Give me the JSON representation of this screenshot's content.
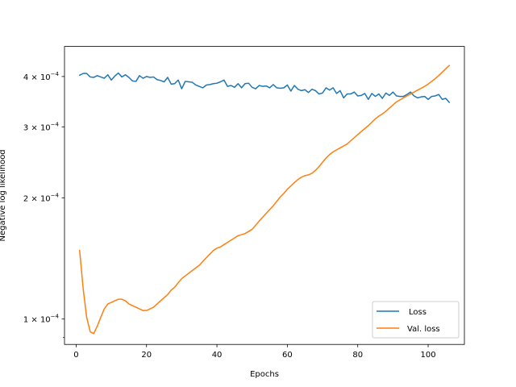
{
  "chart_data": {
    "type": "line",
    "title": "",
    "xlabel": "Epochs",
    "ylabel": "Negative log likelihood",
    "xlim": [
      -3.3,
      110.3
    ],
    "ylim": [
      8.65e-05,
      0.000475
    ],
    "yscale": "log",
    "xticks": [
      0,
      20,
      40,
      60,
      80,
      100
    ],
    "xtick_labels": [
      "0",
      "20",
      "40",
      "60",
      "80",
      "100"
    ],
    "yticks": [
      0.0001,
      0.0002,
      0.0003,
      0.0004
    ],
    "ytick_labels": [
      {
        "base": "1",
        "exp": "−4"
      },
      {
        "base": "2",
        "exp": "−4"
      },
      {
        "base": "3",
        "exp": "−4"
      },
      {
        "base": "4",
        "exp": "−4"
      }
    ],
    "ytick_prefix": "× 10",
    "grid": false,
    "legend": {
      "position": "bottom-right",
      "entries": [
        "Loss",
        "Val. loss"
      ]
    },
    "colors": {
      "Loss": "#1f77b4",
      "Val. loss": "#ff7f0e"
    },
    "series": [
      {
        "name": "Loss",
        "x": [
          1,
          2,
          3,
          4,
          5,
          6,
          7,
          8,
          9,
          10,
          11,
          12,
          13,
          14,
          15,
          16,
          17,
          18,
          19,
          20,
          21,
          22,
          23,
          24,
          25,
          26,
          27,
          28,
          29,
          30,
          31,
          32,
          33,
          34,
          35,
          36,
          37,
          38,
          39,
          40,
          41,
          42,
          43,
          44,
          45,
          46,
          47,
          48,
          49,
          50,
          51,
          52,
          53,
          54,
          55,
          56,
          57,
          58,
          59,
          60,
          61,
          62,
          63,
          64,
          65,
          66,
          67,
          68,
          69,
          70,
          71,
          72,
          73,
          74,
          75,
          76,
          77,
          78,
          79,
          80,
          81,
          82,
          83,
          84,
          85,
          86,
          87,
          88,
          89,
          90,
          91,
          92,
          93,
          94,
          95,
          96,
          97,
          98,
          99,
          100,
          101,
          102,
          103,
          104,
          105,
          106
        ],
        "y": [
          0.000403,
          0.000407,
          0.000407,
          0.000399,
          0.000398,
          0.000402,
          0.000399,
          0.000396,
          0.000404,
          0.000392,
          0.000401,
          0.000408,
          0.000399,
          0.000404,
          0.000398,
          0.00039,
          0.000389,
          0.000402,
          0.000396,
          0.0004,
          0.000398,
          0.000399,
          0.000393,
          0.000391,
          0.000388,
          0.000398,
          0.000383,
          0.000384,
          0.000392,
          0.000373,
          0.000389,
          0.000388,
          0.000387,
          0.000381,
          0.000378,
          0.000375,
          0.000381,
          0.000382,
          0.000384,
          0.000385,
          0.000388,
          0.000392,
          0.000378,
          0.00038,
          0.000376,
          0.000384,
          0.000375,
          0.000384,
          0.000385,
          0.000376,
          0.000373,
          0.00038,
          0.000378,
          0.000379,
          0.000375,
          0.000382,
          0.000375,
          0.000374,
          0.000375,
          0.000381,
          0.000368,
          0.00038,
          0.000372,
          0.000369,
          0.000371,
          0.000365,
          0.000372,
          0.000369,
          0.000362,
          0.000364,
          0.000375,
          0.00037,
          0.000375,
          0.000363,
          0.000369,
          0.000354,
          0.000362,
          0.000362,
          0.000366,
          0.000358,
          0.000359,
          0.000363,
          0.000351,
          0.000363,
          0.000357,
          0.000362,
          0.000353,
          0.000364,
          0.000359,
          0.000366,
          0.000358,
          0.000357,
          0.000357,
          0.000361,
          0.000366,
          0.000358,
          0.000354,
          0.000356,
          0.000357,
          0.000351,
          0.000357,
          0.000358,
          0.000361,
          0.000351,
          0.000353,
          0.000345
        ]
      },
      {
        "name": "Val. loss",
        "x": [
          1,
          2,
          3,
          4,
          5,
          6,
          7,
          8,
          9,
          10,
          11,
          12,
          13,
          14,
          15,
          16,
          17,
          18,
          19,
          20,
          21,
          22,
          23,
          24,
          25,
          26,
          27,
          28,
          29,
          30,
          31,
          32,
          33,
          34,
          35,
          36,
          37,
          38,
          39,
          40,
          41,
          42,
          43,
          44,
          45,
          46,
          47,
          48,
          49,
          50,
          51,
          52,
          53,
          54,
          55,
          56,
          57,
          58,
          59,
          60,
          61,
          62,
          63,
          64,
          65,
          66,
          67,
          68,
          69,
          70,
          71,
          72,
          73,
          74,
          75,
          76,
          77,
          78,
          79,
          80,
          81,
          82,
          83,
          84,
          85,
          86,
          87,
          88,
          89,
          90,
          91,
          92,
          93,
          94,
          95,
          96,
          97,
          98,
          99,
          100,
          101,
          102,
          103,
          104,
          105,
          106
        ],
        "y": [
          0.000148,
          0.000119,
          0.000101,
          9.3e-05,
          9.2e-05,
          9.6e-05,
          0.000101,
          0.000106,
          0.000109,
          0.00011,
          0.000111,
          0.000112,
          0.000112,
          0.000111,
          0.000109,
          0.000108,
          0.000107,
          0.000106,
          0.000105,
          0.000105,
          0.000106,
          0.000107,
          0.000109,
          0.000111,
          0.000113,
          0.000115,
          0.000118,
          0.00012,
          0.000123,
          0.000126,
          0.000128,
          0.00013,
          0.000132,
          0.000134,
          0.000136,
          0.000139,
          0.000142,
          0.000145,
          0.000148,
          0.00015,
          0.000151,
          0.000153,
          0.000155,
          0.000157,
          0.000159,
          0.000161,
          0.000162,
          0.000163,
          0.000165,
          0.000167,
          0.000171,
          0.000175,
          0.000179,
          0.000183,
          0.000187,
          0.000191,
          0.000196,
          0.000201,
          0.000205,
          0.00021,
          0.000214,
          0.000218,
          0.000222,
          0.000225,
          0.000227,
          0.000228,
          0.00023,
          0.000234,
          0.000239,
          0.000245,
          0.000251,
          0.000256,
          0.00026,
          0.000263,
          0.000266,
          0.000269,
          0.000272,
          0.000277,
          0.000282,
          0.000287,
          0.000292,
          0.000297,
          0.000302,
          0.000308,
          0.000314,
          0.000319,
          0.000323,
          0.000328,
          0.000334,
          0.00034,
          0.000346,
          0.00035,
          0.000354,
          0.000358,
          0.000362,
          0.000366,
          0.00037,
          0.000374,
          0.000378,
          0.000383,
          0.000389,
          0.000395,
          0.000402,
          0.00041,
          0.000418,
          0.000426
        ]
      }
    ]
  }
}
